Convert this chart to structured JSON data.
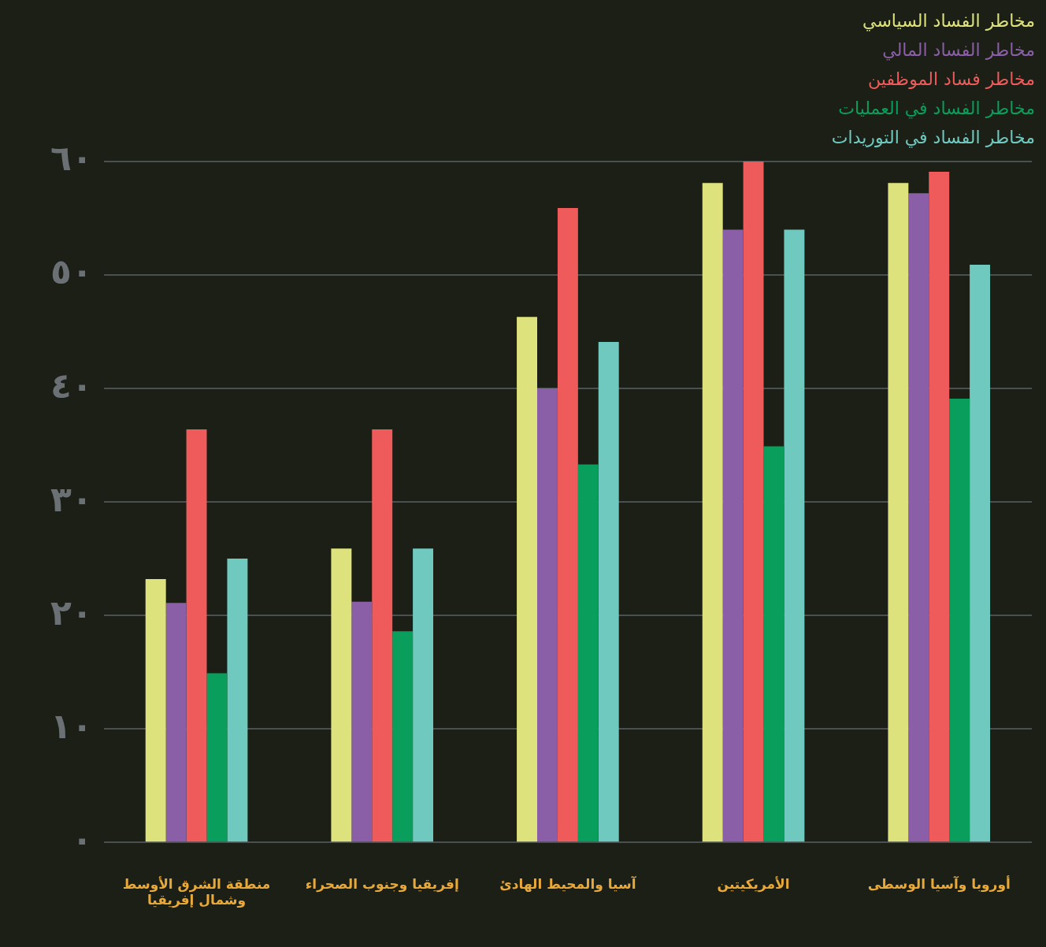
{
  "chart_data": {
    "type": "bar",
    "categories": [
      "منطقة الشرق الأوسط وشمال إفريقيا",
      "إفريقيا وجنوب الصحراء",
      "آسيا والمحيط الهادئ",
      "الأمريكيتين",
      "أوروبا وآسيا الوسطى"
    ],
    "series": [
      {
        "name": "مخاطر الفساد السياسي",
        "color": "#dde27c",
        "values": [
          23.2,
          25.9,
          46.3,
          58.1,
          58.1
        ]
      },
      {
        "name": "مخاطر الفساد المالي",
        "color": "#8a5fa8",
        "values": [
          21.1,
          21.2,
          40.0,
          54.0,
          57.2
        ]
      },
      {
        "name": "مخاطر فساد الموظفين",
        "color": "#ef5b5a",
        "values": [
          36.4,
          36.4,
          55.9,
          60.0,
          59.1
        ]
      },
      {
        "name": "مخاطر الفساد في العمليات",
        "color": "#0a9e5c",
        "values": [
          14.9,
          18.6,
          33.3,
          34.9,
          39.1
        ]
      },
      {
        "name": "مخاطر الفساد في التوريدات",
        "color": "#6fc9bf",
        "values": [
          25.0,
          25.9,
          44.1,
          54.0,
          50.9
        ]
      }
    ],
    "ylim": [
      0,
      60
    ],
    "yticks": [
      {
        "value": 0,
        "label": "٠"
      },
      {
        "value": 10,
        "label": "١٠"
      },
      {
        "value": 20,
        "label": "٢٠"
      },
      {
        "value": 30,
        "label": "٣٠"
      },
      {
        "value": 40,
        "label": "٤٠"
      },
      {
        "value": 50,
        "label": "٥٠"
      },
      {
        "value": 60,
        "label": "٦٠"
      }
    ],
    "grid": "y",
    "legend": "top right"
  }
}
